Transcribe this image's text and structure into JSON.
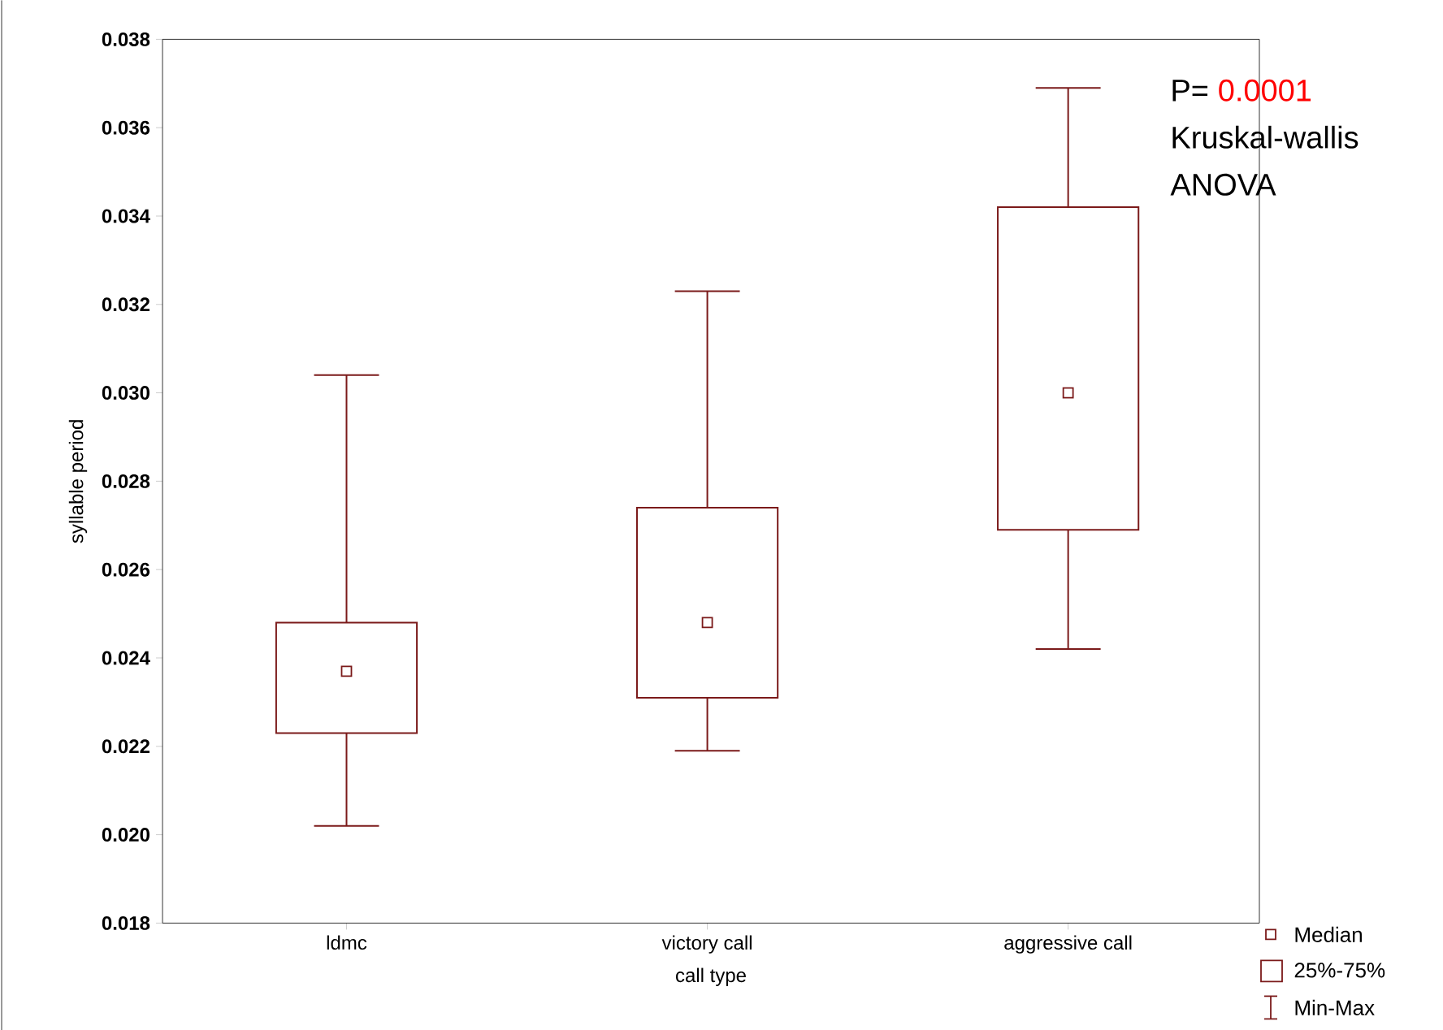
{
  "chart_data": {
    "type": "box",
    "xlabel": "call type",
    "ylabel": "syllable period",
    "categories": [
      "ldmc",
      "victory call",
      "aggressive call"
    ],
    "color": "#7b1a1a",
    "boxes": [
      {
        "low": 0.0202,
        "q1": 0.0223,
        "median": 0.0237,
        "q3": 0.0248,
        "high": 0.0304
      },
      {
        "low": 0.0219,
        "q1": 0.0231,
        "median": 0.0248,
        "q3": 0.0274,
        "high": 0.0323
      },
      {
        "low": 0.0242,
        "q1": 0.0269,
        "median": 0.03,
        "q3": 0.0342,
        "high": 0.0369
      }
    ],
    "ylim": [
      0.018,
      0.038
    ],
    "yticks": [
      0.018,
      {
        "value": 0.02,
        "label": "0.020"
      },
      0.022,
      0.024,
      0.026,
      0.028,
      {
        "value": 0.03,
        "label": "0.030"
      },
      0.032,
      0.034,
      0.036,
      0.038
    ],
    "annotations": [
      "P=",
      "0.0001",
      "Kruskal-wallis",
      "ANOVA",
      "Median",
      "25%-75%",
      "Min-Max"
    ]
  }
}
